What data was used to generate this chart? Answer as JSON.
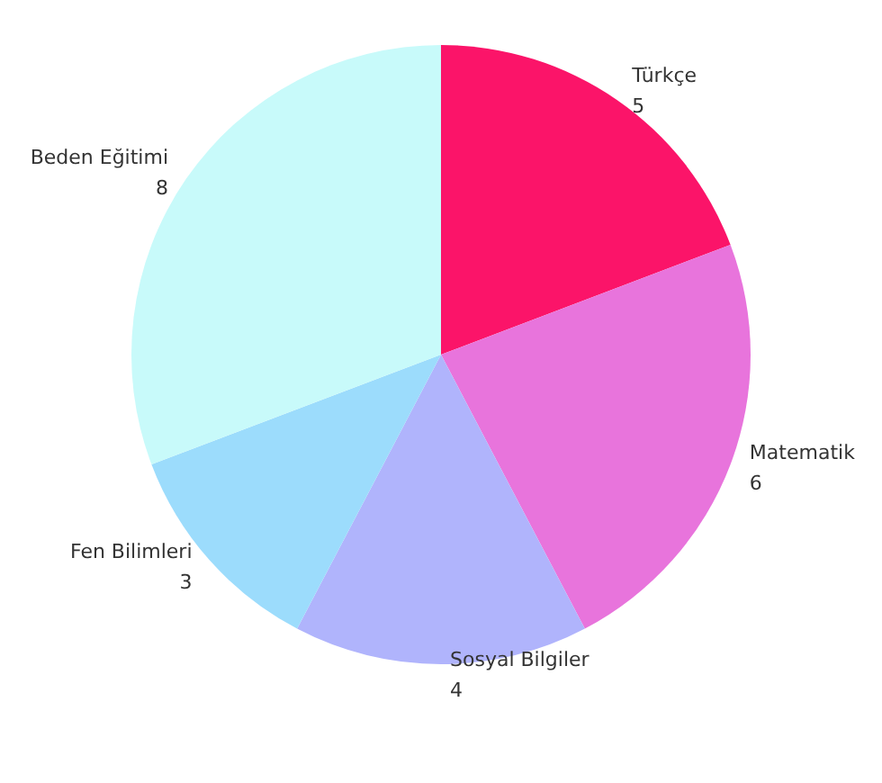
{
  "chart_data": {
    "type": "pie",
    "categories": [
      "Türkçe",
      "Matematik",
      "Sosyal Bilgiler",
      "Fen Bilimleri",
      "Beden Eğitimi"
    ],
    "values": [
      5,
      6,
      4,
      3,
      8
    ],
    "colors": [
      "#fb1469",
      "#e874dc",
      "#b0b4fc",
      "#9cdcfc",
      "#c8fafa"
    ],
    "data_labels": true,
    "legend": false
  }
}
